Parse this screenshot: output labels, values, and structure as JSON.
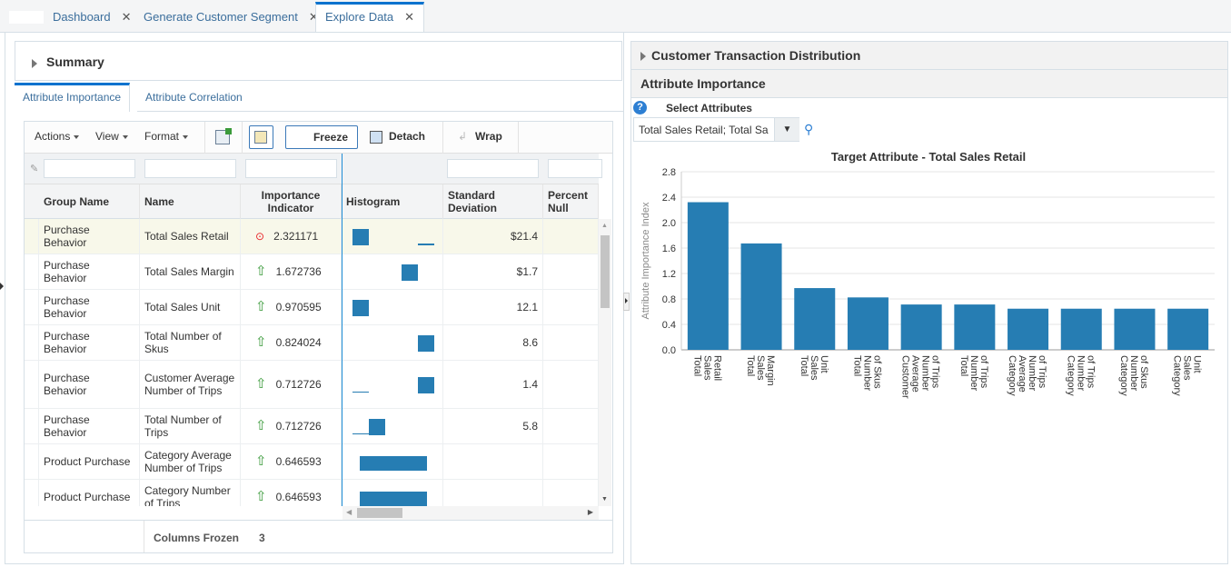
{
  "tabs": [
    {
      "label": "Dashboard",
      "active": false
    },
    {
      "label": "Generate Customer Segment",
      "active": false
    },
    {
      "label": "Explore Data",
      "active": true
    }
  ],
  "summary": {
    "title": "Summary"
  },
  "subtabs": [
    {
      "label": "Attribute Importance",
      "active": true
    },
    {
      "label": "Attribute Correlation",
      "active": false
    }
  ],
  "toolbar": {
    "actions": "Actions",
    "view": "View",
    "format": "Format",
    "freeze": "Freeze",
    "detach": "Detach",
    "wrap": "Wrap"
  },
  "table": {
    "columns": [
      "Group Name",
      "Name",
      "Importance Indicator",
      "Histogram",
      "Standard Deviation",
      "Percent Null"
    ],
    "rows": [
      {
        "group": "Purchase Behavior",
        "name": "Total Sales Retail",
        "indicator": "target",
        "importance": "2.321171",
        "hist": [
          1,
          0,
          0,
          0,
          0.05
        ],
        "std": "$21.4",
        "selected": true
      },
      {
        "group": "Purchase Behavior",
        "name": "Total Sales Margin",
        "indicator": "up",
        "importance": "1.672736",
        "hist": [
          0,
          0,
          0,
          1,
          0
        ],
        "std": "$1.7"
      },
      {
        "group": "Purchase Behavior",
        "name": "Total Sales Unit",
        "indicator": "up",
        "importance": "0.970595",
        "hist": [
          1,
          0,
          0,
          0,
          0
        ],
        "std": "12.1"
      },
      {
        "group": "Purchase Behavior",
        "name": "Total Number of Skus",
        "indicator": "up",
        "importance": "0.824024",
        "hist": [
          0,
          0,
          0,
          0,
          1
        ],
        "std": "8.6"
      },
      {
        "group": "Purchase Behavior",
        "name": "Customer Average Number of Trips",
        "indicator": "up",
        "importance": "0.712726",
        "hist": [
          0.1,
          0,
          0,
          0,
          1
        ],
        "std": "1.4"
      },
      {
        "group": "Purchase Behavior",
        "name": "Total Number of Trips",
        "indicator": "up",
        "importance": "0.712726",
        "hist": [
          0.1,
          1,
          0,
          0,
          0
        ],
        "std": "5.8"
      },
      {
        "group": "Product Purchase",
        "name": "Category Average Number of Trips",
        "indicator": "up",
        "importance": "0.646593",
        "hist": "full",
        "std": ""
      },
      {
        "group": "Product Purchase",
        "name": "Category Number of Trips",
        "indicator": "up",
        "importance": "0.646593",
        "hist": "full",
        "std": ""
      }
    ],
    "footer": {
      "label": "Columns Frozen",
      "value": "3"
    }
  },
  "right": {
    "header1": "Customer Transaction Distribution",
    "header2": "Attribute Importance",
    "select_label": "Select Attributes",
    "select_value": "Total Sales Retail; Total Sa"
  },
  "colors": {
    "accent": "#0572ce",
    "bar": "#267db3",
    "up": "#3a9a3a",
    "target": "#e8262a"
  },
  "chart_data": {
    "type": "bar",
    "title": "Target Attribute - Total Sales Retail",
    "ylabel": "Attribute Importance Index",
    "xlabel": "",
    "ylim": [
      0,
      2.8
    ],
    "yticks": [
      "0.0",
      "0.4",
      "0.8",
      "1.2",
      "1.6",
      "2.0",
      "2.4",
      "2.8"
    ],
    "grid": true,
    "categories": [
      "Total Sales Retail",
      "Total Sales Margin",
      "Total Sales Unit",
      "Total Number of Skus",
      "Customer Average Number of Trips",
      "Total Number of Trips",
      "Category Average Number of Trips",
      "Category Number of Trips",
      "Category Number of Skus",
      "Category Sales Unit"
    ],
    "category_lines": [
      [
        "Total",
        "Sales",
        "Retail"
      ],
      [
        "Total",
        "Sales",
        "Margin"
      ],
      [
        "Total",
        "Sales",
        "Unit"
      ],
      [
        "Total",
        "Number",
        "of Skus"
      ],
      [
        "Customer",
        "Average",
        "Number",
        "of Trips"
      ],
      [
        "Total",
        "Number",
        "of Trips"
      ],
      [
        "Category",
        "Average",
        "Number",
        "of Trips"
      ],
      [
        "Category",
        "Number",
        "of Trips"
      ],
      [
        "Category",
        "Number",
        "of Skus"
      ],
      [
        "Category",
        "Sales",
        "Unit"
      ]
    ],
    "values": [
      2.321171,
      1.672736,
      0.970595,
      0.824024,
      0.712726,
      0.712726,
      0.646593,
      0.646593,
      0.646593,
      0.646593
    ]
  }
}
